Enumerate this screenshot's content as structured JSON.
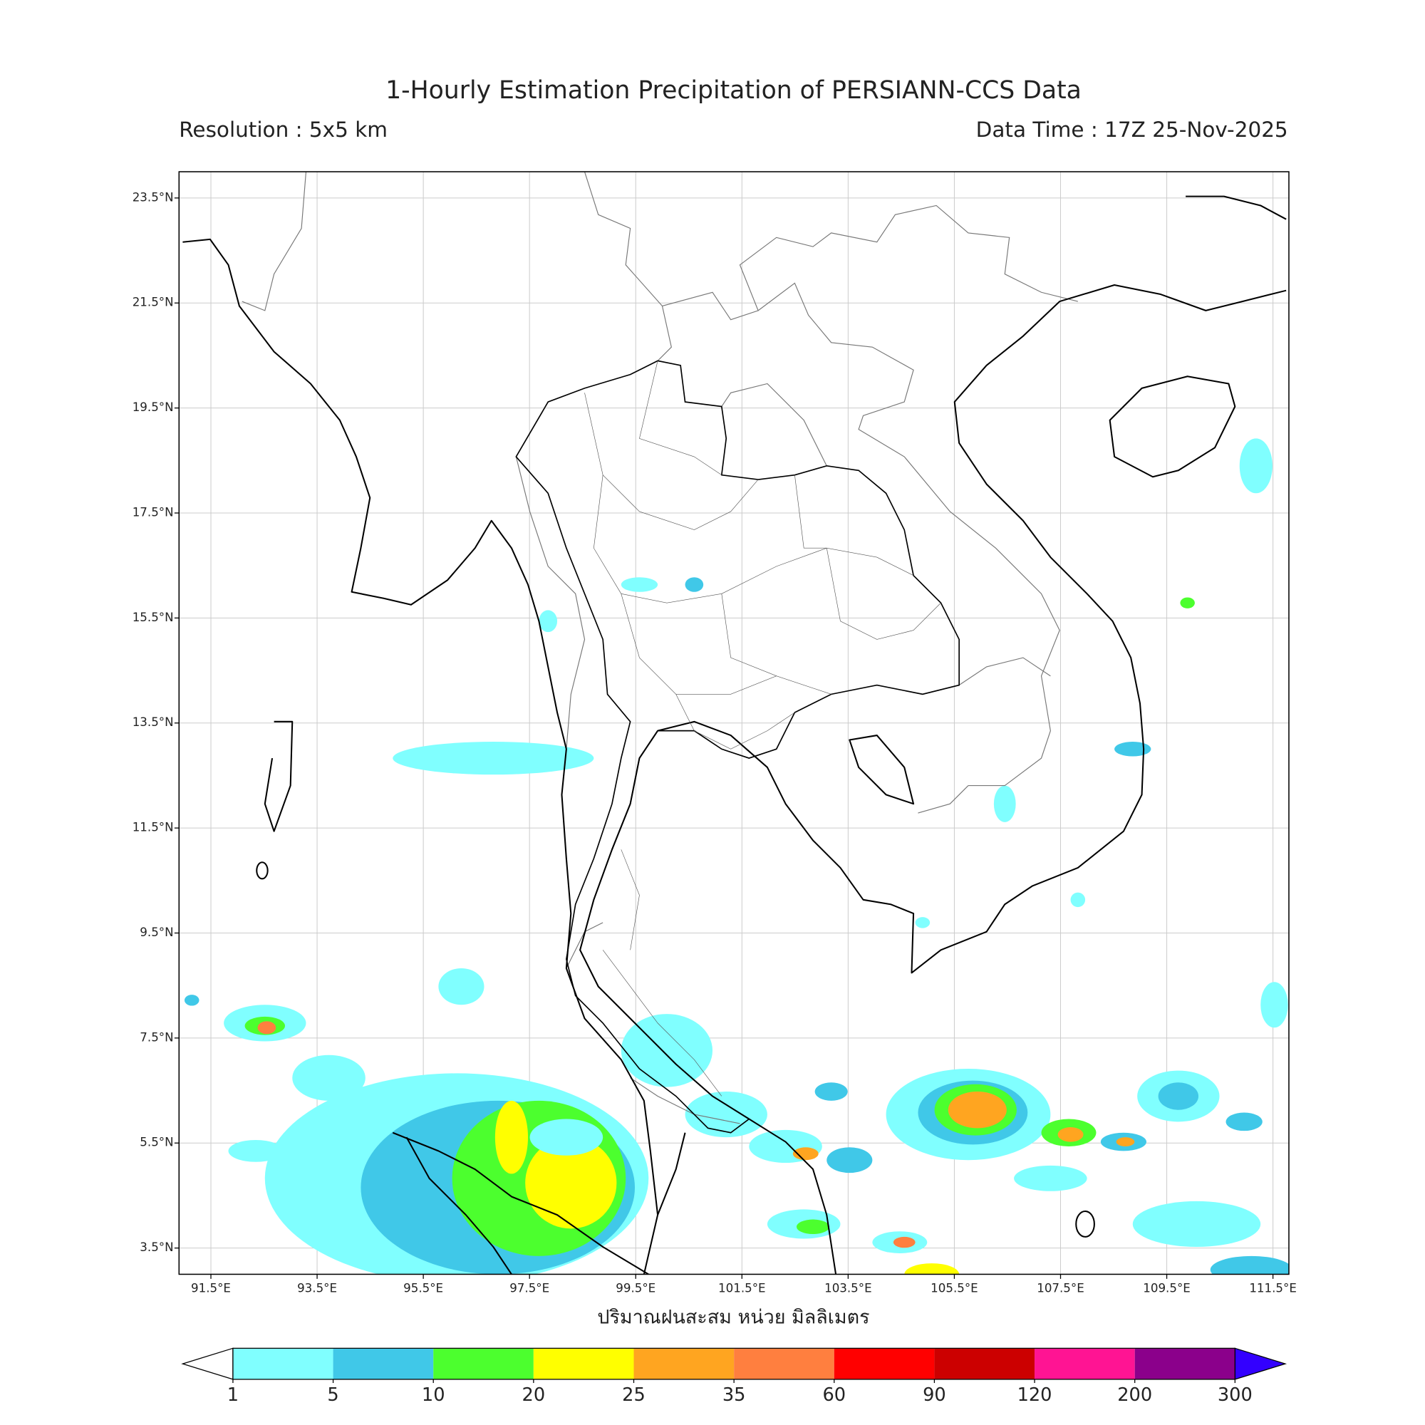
{
  "title": "1-Hourly Estimation Precipitation of PERSIANN-CCS Data",
  "subtitle_left": "Resolution : 5x5 km",
  "subtitle_right": "Data Time : 17Z 25-Nov-2025",
  "xlabel": "ปริมาณฝนสะสม หน่วย มิลลิเมตร",
  "xlim": [
    90.9,
    111.8
  ],
  "ylim": [
    3.0,
    24.0
  ],
  "xticks": [
    {
      "value": 91.5,
      "label": "91.5°E"
    },
    {
      "value": 93.5,
      "label": "93.5°E"
    },
    {
      "value": 95.5,
      "label": "95.5°E"
    },
    {
      "value": 97.5,
      "label": "97.5°E"
    },
    {
      "value": 99.5,
      "label": "99.5°E"
    },
    {
      "value": 101.5,
      "label": "101.5°E"
    },
    {
      "value": 103.5,
      "label": "103.5°E"
    },
    {
      "value": 105.5,
      "label": "105.5°E"
    },
    {
      "value": 107.5,
      "label": "107.5°E"
    },
    {
      "value": 109.5,
      "label": "109.5°E"
    },
    {
      "value": 111.5,
      "label": "111.5°E"
    }
  ],
  "yticks": [
    {
      "value": 23.5,
      "label": "23.5°N"
    },
    {
      "value": 21.5,
      "label": "21.5°N"
    },
    {
      "value": 19.5,
      "label": "19.5°N"
    },
    {
      "value": 17.5,
      "label": "17.5°N"
    },
    {
      "value": 15.5,
      "label": "15.5°N"
    },
    {
      "value": 13.5,
      "label": "13.5°N"
    },
    {
      "value": 11.5,
      "label": "11.5°N"
    },
    {
      "value": 9.5,
      "label": "9.5°N"
    },
    {
      "value": 7.5,
      "label": "7.5°N"
    },
    {
      "value": 5.5,
      "label": "5.5°N"
    },
    {
      "value": 3.5,
      "label": "3.5°N"
    }
  ],
  "grid": true,
  "colorbar": {
    "levels": [
      1,
      5,
      10,
      20,
      25,
      35,
      60,
      90,
      120,
      200,
      300
    ],
    "colors": [
      "#80ffff",
      "#40c8e8",
      "#4cff2e",
      "#ffff00",
      "#ffa520",
      "#ff7f3f",
      "#ff0000",
      "#cc0000",
      "#ff1493",
      "#8b008b"
    ],
    "under_color": "#ffffff",
    "over_color": "#3300ff"
  }
}
